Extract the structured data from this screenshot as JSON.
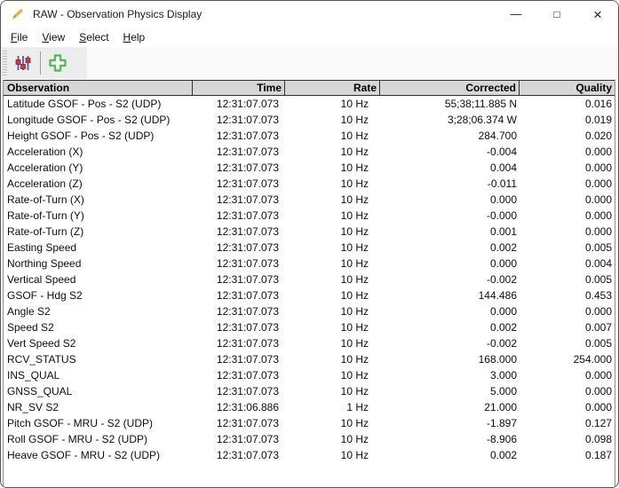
{
  "window": {
    "title": "RAW - Observation Physics Display",
    "controls": {
      "minimize_glyph": "—",
      "maximize_glyph": "□",
      "close_glyph": "×"
    }
  },
  "menu": {
    "items": [
      {
        "label": "File"
      },
      {
        "label": "View"
      },
      {
        "label": "Select"
      },
      {
        "label": "Help"
      }
    ]
  },
  "toolbar": {
    "icons": [
      {
        "name": "sliders-filter-icon"
      },
      {
        "name": "add-observation-icon"
      }
    ],
    "colors": {
      "slider_line": "#3b63c4",
      "slider_handle": "#d23b3b",
      "plus_green": "#5cb85c"
    }
  },
  "table": {
    "header_bg": "#d6d6d6",
    "columns": [
      {
        "key": "observation",
        "label": "Observation",
        "align": "left"
      },
      {
        "key": "time",
        "label": "Time",
        "align": "right"
      },
      {
        "key": "rate",
        "label": "Rate",
        "align": "right"
      },
      {
        "key": "corrected",
        "label": "Corrected",
        "align": "right"
      },
      {
        "key": "quality",
        "label": "Quality",
        "align": "right"
      }
    ],
    "rows": [
      [
        "Latitude GSOF - Pos - S2 (UDP)",
        "12:31:07.073",
        "10 Hz",
        "55;38;11.885 N",
        "0.016"
      ],
      [
        "Longitude GSOF - Pos - S2 (UDP)",
        "12:31:07.073",
        "10 Hz",
        "3;28;06.374 W",
        "0.019"
      ],
      [
        "Height GSOF - Pos - S2 (UDP)",
        "12:31:07.073",
        "10 Hz",
        "284.700",
        "0.020"
      ],
      [
        "Acceleration (X)",
        "12:31:07.073",
        "10 Hz",
        "-0.004",
        "0.000"
      ],
      [
        "Acceleration (Y)",
        "12:31:07.073",
        "10 Hz",
        "0.004",
        "0.000"
      ],
      [
        "Acceleration (Z)",
        "12:31:07.073",
        "10 Hz",
        "-0.011",
        "0.000"
      ],
      [
        "Rate-of-Turn (X)",
        "12:31:07.073",
        "10 Hz",
        "0.000",
        "0.000"
      ],
      [
        "Rate-of-Turn (Y)",
        "12:31:07.073",
        "10 Hz",
        "-0.000",
        "0.000"
      ],
      [
        "Rate-of-Turn (Z)",
        "12:31:07.073",
        "10 Hz",
        "0.001",
        "0.000"
      ],
      [
        "Easting Speed",
        "12:31:07.073",
        "10 Hz",
        "0.002",
        "0.005"
      ],
      [
        "Northing Speed",
        "12:31:07.073",
        "10 Hz",
        "0.000",
        "0.004"
      ],
      [
        "Vertical Speed",
        "12:31:07.073",
        "10 Hz",
        "-0.002",
        "0.005"
      ],
      [
        "GSOF - Hdg S2",
        "12:31:07.073",
        "10 Hz",
        "144.486",
        "0.453"
      ],
      [
        "Angle S2",
        "12:31:07.073",
        "10 Hz",
        "0.000",
        "0.000"
      ],
      [
        "Speed S2",
        "12:31:07.073",
        "10 Hz",
        "0.002",
        "0.007"
      ],
      [
        "Vert Speed S2",
        "12:31:07.073",
        "10 Hz",
        "-0.002",
        "0.005"
      ],
      [
        "RCV_STATUS",
        "12:31:07.073",
        "10 Hz",
        "168.000",
        "254.000"
      ],
      [
        "INS_QUAL",
        "12:31:07.073",
        "10 Hz",
        "3.000",
        "0.000"
      ],
      [
        "GNSS_QUAL",
        "12:31:07.073",
        "10 Hz",
        "5.000",
        "0.000"
      ],
      [
        "NR_SV S2",
        "12:31:06.886",
        "1 Hz",
        "21.000",
        "0.000"
      ],
      [
        "Pitch GSOF - MRU - S2 (UDP)",
        "12:31:07.073",
        "10 Hz",
        "-1.897",
        "0.127"
      ],
      [
        "Roll GSOF - MRU - S2 (UDP)",
        "12:31:07.073",
        "10 Hz",
        "-8.906",
        "0.098"
      ],
      [
        "Heave GSOF - MRU - S2 (UDP)",
        "12:31:07.073",
        "10 Hz",
        "0.002",
        "0.187"
      ]
    ]
  }
}
